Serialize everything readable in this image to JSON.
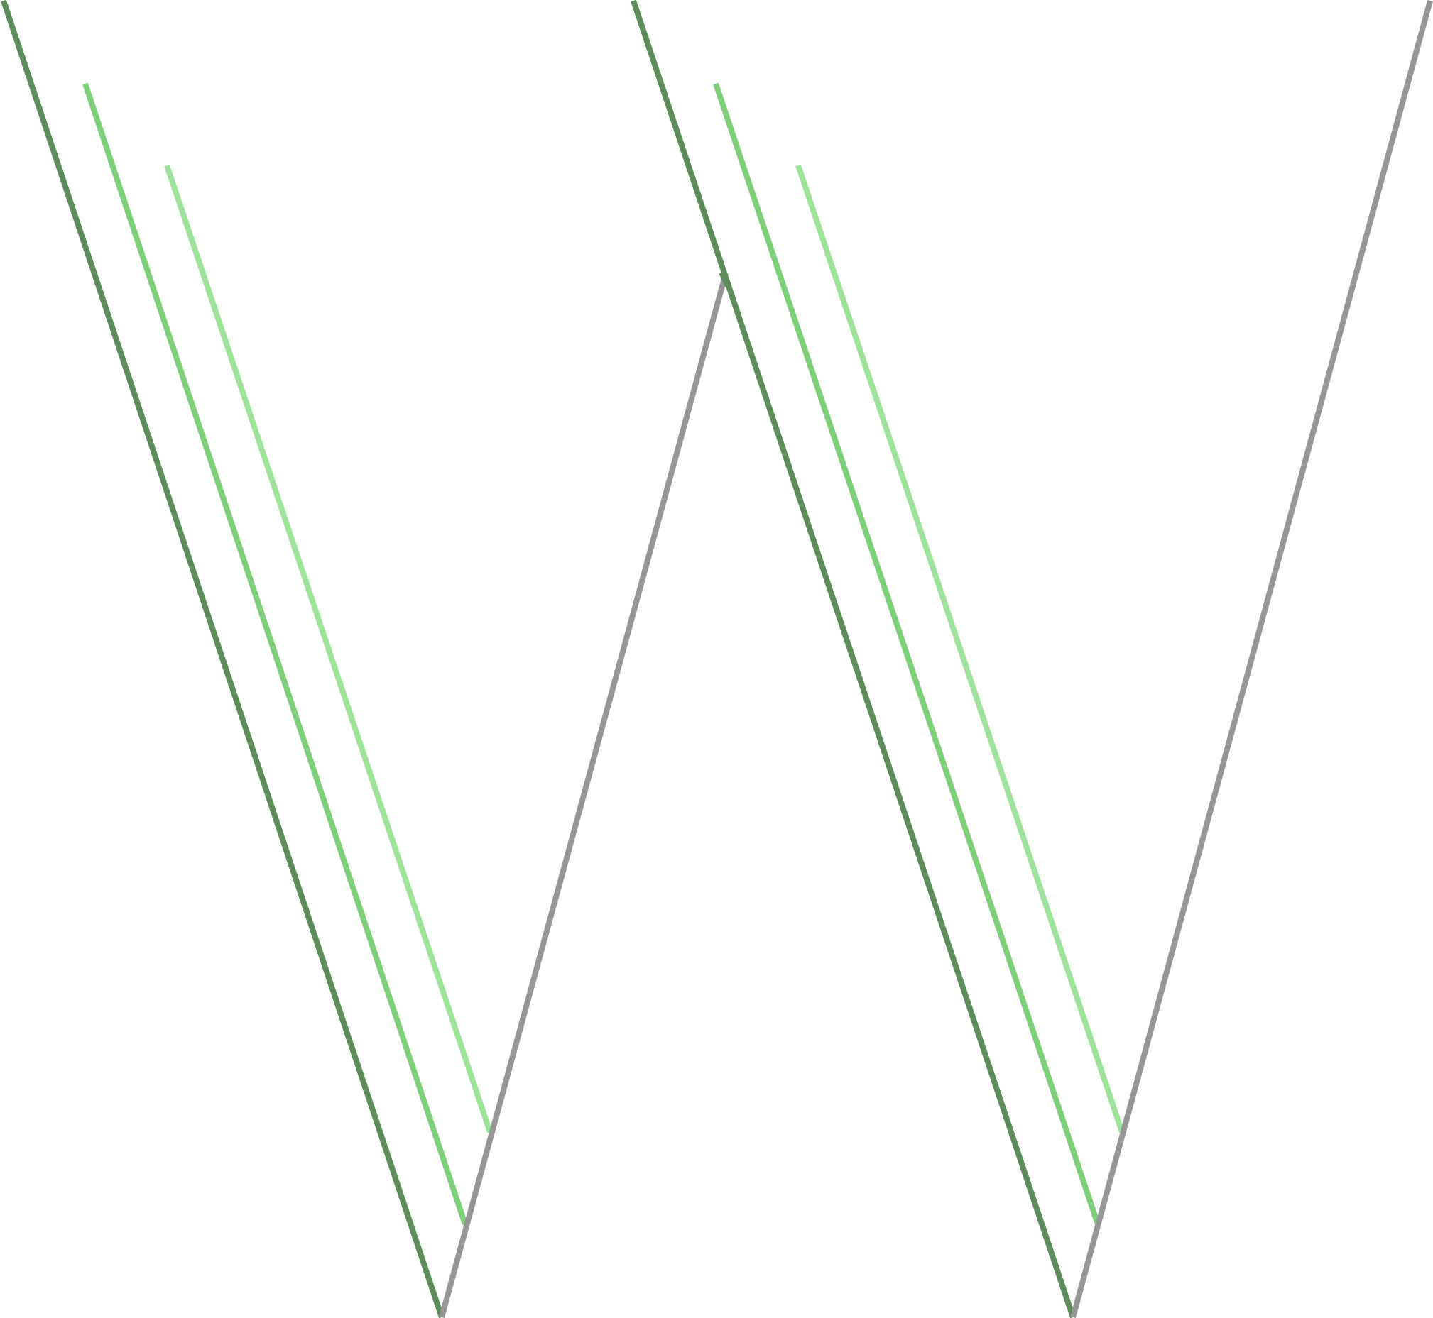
{
  "colors": {
    "dark_green": "#5e8c5a",
    "mid_green": "#7fce7a",
    "light_green": "#9fe29c",
    "gray": "#969696"
  },
  "graphic": {
    "motif": "double-v-line-art"
  }
}
